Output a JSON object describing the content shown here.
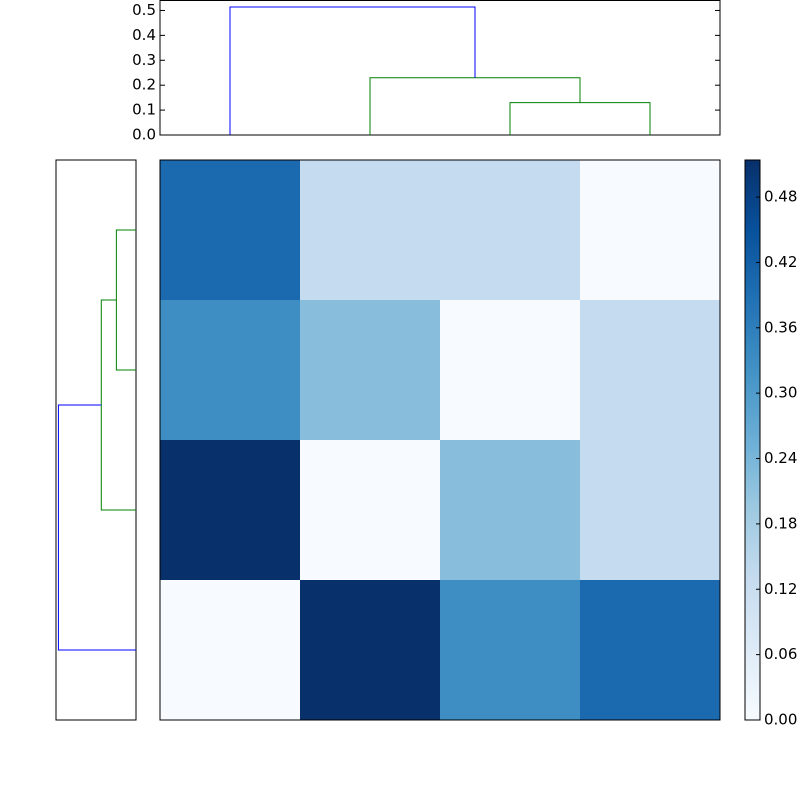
{
  "chart_data": [
    {
      "type": "dendrogram",
      "orientation": "top",
      "xlim": [
        -0.5,
        3.5
      ],
      "ylim": [
        0,
        0.54
      ],
      "yticks": [
        {
          "value": 0,
          "label": "0.0"
        },
        {
          "value": 0.1,
          "label": "0.1"
        },
        {
          "value": 0.2,
          "label": "0.2"
        },
        {
          "value": 0.3,
          "label": "0.3"
        },
        {
          "value": 0.4,
          "label": "0.4"
        },
        {
          "value": 0.5,
          "label": "0.5"
        }
      ],
      "links": [
        {
          "color": "#008000",
          "leaf_pos": [
            2,
            2,
            3,
            3
          ],
          "height": [
            0,
            0.13,
            0.13,
            0
          ]
        },
        {
          "color": "#008000",
          "leaf_pos": [
            1,
            1,
            2.5,
            2.5
          ],
          "height": [
            0,
            0.23,
            0.23,
            0.13
          ]
        },
        {
          "color": "#0000ff",
          "leaf_pos": [
            0,
            0,
            1.75,
            1.75
          ],
          "height": [
            0,
            0.514,
            0.514,
            0.23
          ]
        }
      ]
    },
    {
      "type": "dendrogram",
      "orientation": "left",
      "xlim": [
        0.53,
        0
      ],
      "ylim": [
        -0.5,
        3.5
      ],
      "links": [
        {
          "color": "#008000",
          "leaf_pos": [
            0,
            0,
            1,
            1
          ],
          "height": [
            0,
            0.13,
            0.13,
            0
          ]
        },
        {
          "color": "#008000",
          "leaf_pos": [
            0.5,
            0.5,
            2,
            2
          ],
          "height": [
            0.13,
            0.23,
            0.23,
            0
          ]
        },
        {
          "color": "#0000ff",
          "leaf_pos": [
            1.25,
            1.25,
            3,
            3
          ],
          "height": [
            0.23,
            0.514,
            0.514,
            0
          ]
        }
      ]
    },
    {
      "type": "heatmap",
      "values": [
        [
          0.4,
          0.13,
          0.13,
          0
        ],
        [
          0.33,
          0.22,
          0,
          0.13
        ],
        [
          0.514,
          0,
          0.22,
          0.13
        ],
        [
          0,
          0.514,
          0.33,
          0.4
        ]
      ],
      "clim": [
        0,
        0.514
      ],
      "colormap": [
        "#f7fbff",
        "#deebf7",
        "#c6dbef",
        "#9ecae1",
        "#6baed6",
        "#4292c6",
        "#2171b5",
        "#08519c",
        "#08306b"
      ],
      "colorbar_ticks": [
        {
          "value": 0,
          "label": "0.00"
        },
        {
          "value": 0.06,
          "label": "0.06"
        },
        {
          "value": 0.12,
          "label": "0.12"
        },
        {
          "value": 0.18,
          "label": "0.18"
        },
        {
          "value": 0.24,
          "label": "0.24"
        },
        {
          "value": 0.3,
          "label": "0.30"
        },
        {
          "value": 0.36,
          "label": "0.36"
        },
        {
          "value": 0.42,
          "label": "0.42"
        },
        {
          "value": 0.48,
          "label": "0.48"
        }
      ]
    }
  ]
}
